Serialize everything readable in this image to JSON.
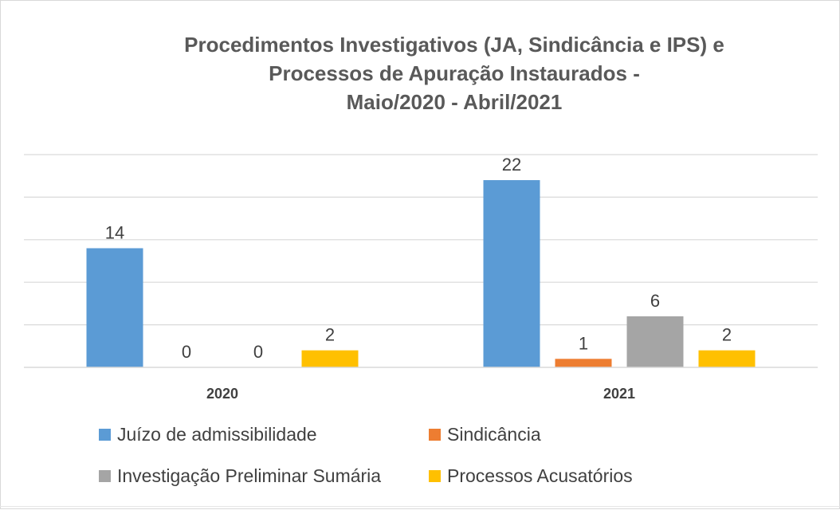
{
  "chart_data": {
    "type": "bar",
    "title_lines": [
      "Procedimentos Investigativos (JA, Sindicância e IPS) e",
      "Processos de Apuração Instaurados -",
      "Maio/2020 - Abril/2021"
    ],
    "categories": [
      "2020",
      "2021"
    ],
    "series": [
      {
        "name": "Juízo de admissibilidade",
        "color": "#5b9bd5",
        "values": [
          14,
          22
        ]
      },
      {
        "name": "Sindicância",
        "color": "#ed7d31",
        "values": [
          0,
          1
        ]
      },
      {
        "name": "Investigação Preliminar Sumária",
        "color": "#a5a5a5",
        "values": [
          0,
          6
        ]
      },
      {
        "name": "Processos Acusatórios",
        "color": "#ffc000",
        "values": [
          2,
          2
        ]
      }
    ],
    "ylim": [
      0,
      25
    ],
    "grid": true,
    "legend_position": "bottom",
    "data_labels": true
  }
}
